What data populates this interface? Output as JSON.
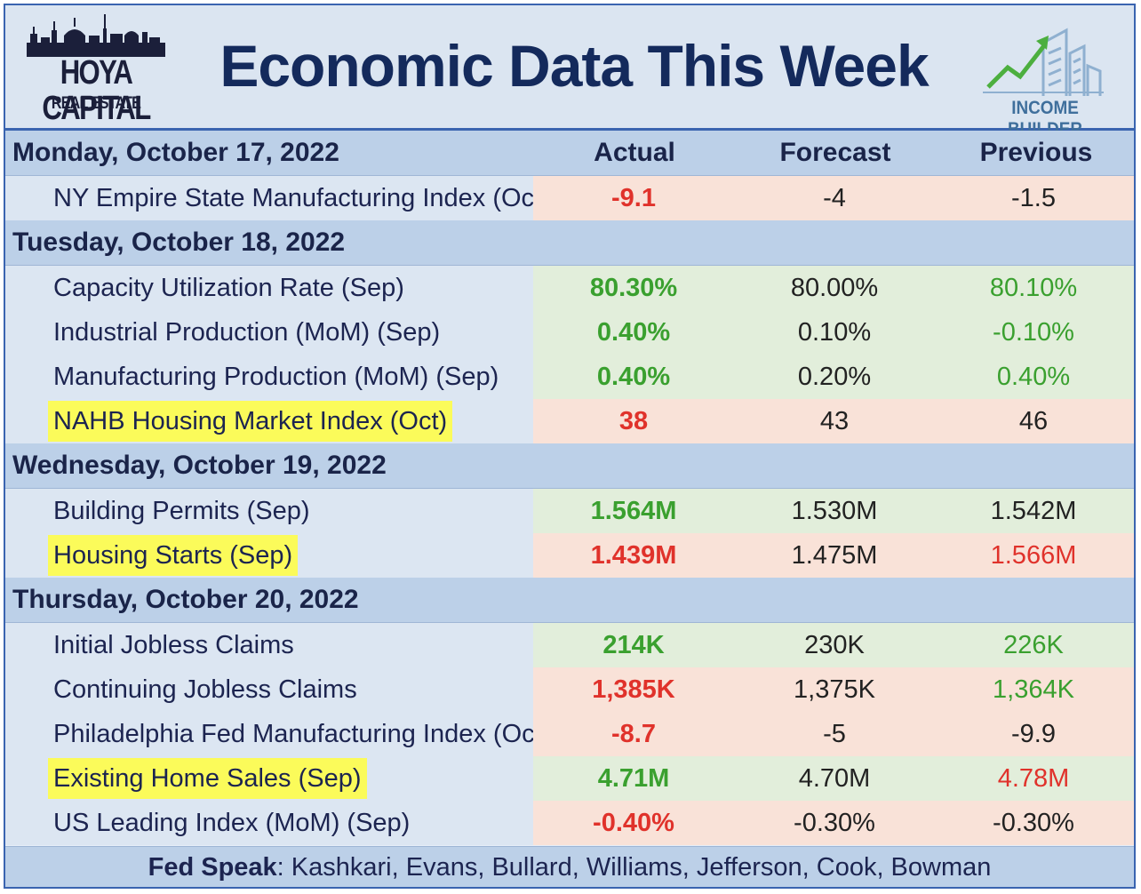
{
  "header": {
    "title": "Economic Data This Week",
    "left_logo": {
      "name": "HOYA CAPITAL",
      "sub": "REAL ESTATE"
    },
    "right_logo": {
      "name": "INCOME BUILDER"
    }
  },
  "columns": {
    "actual": "Actual",
    "forecast": "Forecast",
    "previous": "Previous"
  },
  "colors": {
    "green": "#3aa02f",
    "red": "#e0322b",
    "highlight": "#fbfb5a",
    "header_band": "#bcd0e8",
    "title": "#142a5c"
  },
  "days": [
    {
      "label": "Monday, October 17, 2022",
      "rows": [
        {
          "label": "NY Empire State Manufacturing Index (Oct)",
          "actual": "-9.1",
          "forecast": "-4",
          "previous": "-1.5",
          "result": "red",
          "actual_color": "red",
          "previous_color": "dark",
          "highlight": false
        }
      ]
    },
    {
      "label": "Tuesday, October 18, 2022",
      "rows": [
        {
          "label": "Capacity Utilization Rate (Sep)",
          "actual": "80.30%",
          "forecast": "80.00%",
          "previous": "80.10%",
          "result": "green",
          "actual_color": "green",
          "previous_color": "green",
          "highlight": false
        },
        {
          "label": "Industrial Production (MoM) (Sep)",
          "actual": "0.40%",
          "forecast": "0.10%",
          "previous": "-0.10%",
          "result": "green",
          "actual_color": "green",
          "previous_color": "green",
          "highlight": false
        },
        {
          "label": "Manufacturing Production (MoM) (Sep)",
          "actual": "0.40%",
          "forecast": "0.20%",
          "previous": "0.40%",
          "result": "green",
          "actual_color": "green",
          "previous_color": "green",
          "highlight": false
        },
        {
          "label": "NAHB Housing Market Index (Oct)",
          "actual": "38",
          "forecast": "43",
          "previous": "46",
          "result": "red",
          "actual_color": "red",
          "previous_color": "dark",
          "highlight": true
        }
      ]
    },
    {
      "label": "Wednesday, October 19, 2022",
      "rows": [
        {
          "label": "Building Permits (Sep)",
          "actual": "1.564M",
          "forecast": "1.530M",
          "previous": "1.542M",
          "result": "green",
          "actual_color": "green",
          "previous_color": "dark",
          "highlight": false
        },
        {
          "label": "Housing Starts (Sep)",
          "actual": "1.439M",
          "forecast": "1.475M",
          "previous": "1.566M",
          "result": "red",
          "actual_color": "red",
          "previous_color": "red",
          "highlight": true
        }
      ]
    },
    {
      "label": "Thursday, October 20, 2022",
      "rows": [
        {
          "label": "Initial Jobless Claims",
          "actual": "214K",
          "forecast": "230K",
          "previous": "226K",
          "result": "green",
          "actual_color": "green",
          "previous_color": "green",
          "highlight": false
        },
        {
          "label": "Continuing Jobless Claims",
          "actual": "1,385K",
          "forecast": "1,375K",
          "previous": "1,364K",
          "result": "red",
          "actual_color": "red",
          "previous_color": "green",
          "highlight": false
        },
        {
          "label": "Philadelphia Fed Manufacturing Index (Oct)",
          "actual": "-8.7",
          "forecast": "-5",
          "previous": "-9.9",
          "result": "red",
          "actual_color": "red",
          "previous_color": "dark",
          "highlight": false
        },
        {
          "label": "Existing Home Sales (Sep)",
          "actual": "4.71M",
          "forecast": "4.70M",
          "previous": "4.78M",
          "result": "green",
          "actual_color": "green",
          "previous_color": "red",
          "highlight": true
        },
        {
          "label": "US Leading Index (MoM) (Sep)",
          "actual": "-0.40%",
          "forecast": "-0.30%",
          "previous": "-0.30%",
          "result": "red",
          "actual_color": "red",
          "previous_color": "dark",
          "highlight": false
        }
      ]
    }
  ],
  "footer": {
    "label": "Fed Speak",
    "speakers": ": Kashkari, Evans, Bullard, Williams, Jefferson, Cook, Bowman"
  }
}
